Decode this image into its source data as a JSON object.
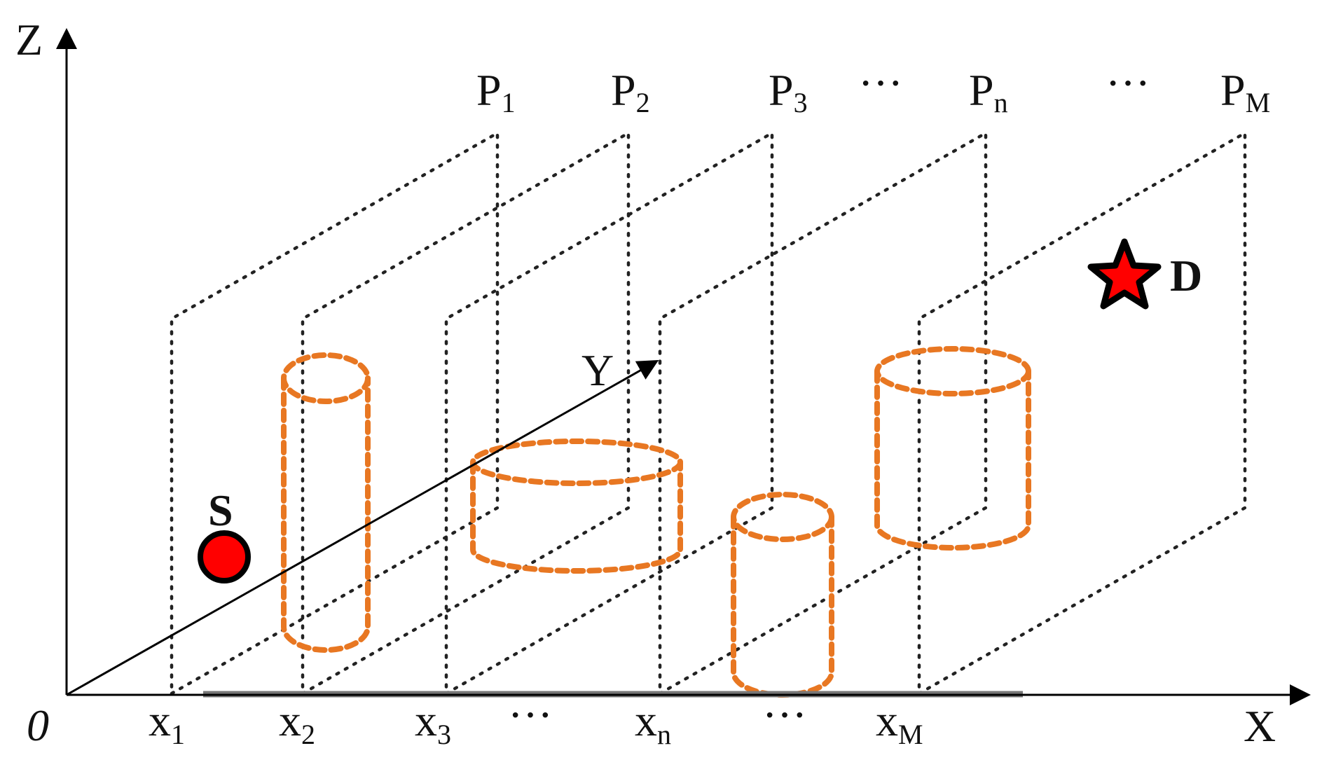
{
  "axes": {
    "z_label": "Z",
    "x_label": "X",
    "y_label": "Y",
    "origin_label": "0"
  },
  "planes": [
    {
      "base": "P",
      "sub": "1"
    },
    {
      "base": "P",
      "sub": "2"
    },
    {
      "base": "P",
      "sub": "3"
    },
    {
      "base": "P",
      "sub": "n"
    },
    {
      "base": "P",
      "sub": "M"
    }
  ],
  "planes_ellipsis": "···",
  "x_ticks": [
    {
      "base": "x",
      "sub": "1"
    },
    {
      "base": "x",
      "sub": "2"
    },
    {
      "base": "x",
      "sub": "3"
    },
    {
      "base": "x",
      "sub": "n"
    },
    {
      "base": "x",
      "sub": "M"
    }
  ],
  "x_ellipsis": "···",
  "source": {
    "label": "S",
    "color": "#ff0000"
  },
  "destination": {
    "label": "D",
    "color": "#ff0000"
  },
  "obstacle_color": "#e87722"
}
